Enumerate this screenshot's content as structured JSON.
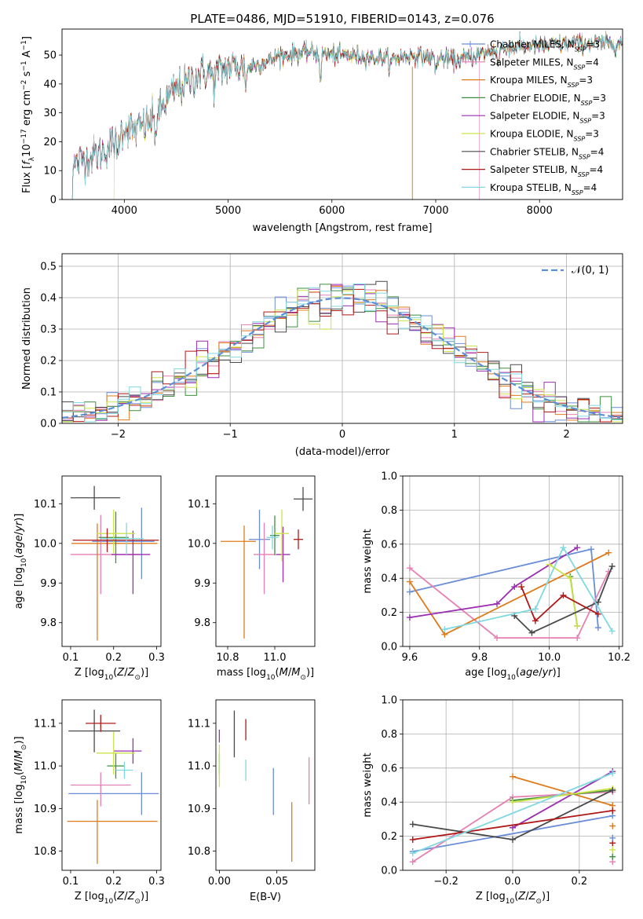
{
  "page_title": "PLATE=0486, MJD=51910, FIBERID=0143, z=0.076",
  "models": [
    {
      "name": "Chabrier MILES",
      "nssp": "3",
      "color": "#6a8ed8"
    },
    {
      "name": "Salpeter MILES",
      "nssp": "4",
      "color": "#e67fb4"
    },
    {
      "name": "Kroupa MILES",
      "nssp": "3",
      "color": "#e07b1c"
    },
    {
      "name": "Chabrier ELODIE",
      "nssp": "3",
      "color": "#3f8f3f"
    },
    {
      "name": "Salpeter ELODIE",
      "nssp": "3",
      "color": "#9b2db0"
    },
    {
      "name": "Kroupa ELODIE",
      "nssp": "3",
      "color": "#cbe34a"
    },
    {
      "name": "Chabrier STELIB",
      "nssp": "4",
      "color": "#4a4a4a"
    },
    {
      "name": "Salpeter STELIB",
      "nssp": "4",
      "color": "#b01818"
    },
    {
      "name": "Kroupa STELIB",
      "nssp": "4",
      "color": "#7fd9e0"
    }
  ],
  "chart_data": [
    {
      "id": "spectrum",
      "type": "line",
      "title": "PLATE=0486, MJD=51910, FIBERID=0143, z=0.076",
      "xlabel": "wavelength [Angstrom, rest frame]",
      "ylabel": "Flux [f_λ 10^-17 erg cm^-2 s^-1 A^-1]",
      "xlim": [
        3400,
        8800
      ],
      "ylim": [
        0,
        59
      ],
      "xticks": [
        4000,
        5000,
        6000,
        7000,
        8000
      ],
      "yticks": [
        0,
        10,
        20,
        30,
        40,
        50
      ],
      "continuum": [
        [
          3500,
          11
        ],
        [
          3600,
          14
        ],
        [
          3700,
          15
        ],
        [
          3800,
          17
        ],
        [
          3900,
          20
        ],
        [
          4000,
          25
        ],
        [
          4100,
          24
        ],
        [
          4200,
          26
        ],
        [
          4300,
          28
        ],
        [
          4400,
          34
        ],
        [
          4500,
          38
        ],
        [
          4600,
          40
        ],
        [
          4700,
          43
        ],
        [
          4800,
          44
        ],
        [
          4900,
          44
        ],
        [
          5000,
          46
        ],
        [
          5100,
          46
        ],
        [
          5200,
          46
        ],
        [
          5300,
          47
        ],
        [
          5400,
          48
        ],
        [
          5500,
          50
        ],
        [
          5600,
          50
        ],
        [
          5700,
          51
        ],
        [
          5800,
          51
        ],
        [
          6000,
          50
        ],
        [
          6200,
          50
        ],
        [
          6400,
          49
        ],
        [
          6600,
          49
        ],
        [
          6800,
          50
        ],
        [
          7000,
          49
        ],
        [
          7200,
          48
        ],
        [
          7400,
          50
        ],
        [
          7600,
          52
        ],
        [
          7800,
          53
        ],
        [
          8000,
          53
        ],
        [
          8200,
          54
        ],
        [
          8400,
          54
        ],
        [
          8600,
          54
        ],
        [
          8800,
          54
        ]
      ],
      "absorption_lines": [
        [
          3933,
          -8
        ],
        [
          4300,
          -5
        ],
        [
          4861,
          -4
        ],
        [
          5175,
          -5
        ],
        [
          5890,
          -8
        ],
        [
          6563,
          -3
        ],
        [
          7000,
          -4
        ],
        [
          7600,
          -5
        ]
      ],
      "model_start_wavelength": [
        3500,
        3500,
        3500,
        3500,
        3500,
        3900,
        3500,
        3500,
        3500
      ],
      "model_end_wavelength": [
        8800,
        7420,
        8800,
        8800,
        8800,
        8800,
        8800,
        8800,
        8800
      ],
      "legend_position": "upper right"
    },
    {
      "id": "residuals",
      "type": "step-histogram",
      "xlabel": "(data-model)/error",
      "ylabel": "Normed distribution",
      "xlim": [
        -2.5,
        2.5
      ],
      "ylim": [
        0,
        0.54
      ],
      "xticks": [
        -2,
        -1,
        0,
        1,
        2
      ],
      "yticks": [
        0.0,
        0.1,
        0.2,
        0.3,
        0.4,
        0.5
      ],
      "bin_width": 0.1,
      "grid": true,
      "reference_curve": "N(0,1)",
      "reference_label": "𝒩(0, 1)",
      "reference_color": "#5b8fd8",
      "legend_position": "upper right"
    },
    {
      "id": "age-vs-Z",
      "type": "errorbar",
      "xlabel": "Z [log10(Z/Z⊙)]",
      "ylabel": "age  [log10(age/yr)]",
      "xlim": [
        0.08,
        0.31
      ],
      "ylim": [
        9.74,
        10.17
      ],
      "xticks": [
        0.1,
        0.2,
        0.3
      ],
      "yticks": [
        9.8,
        9.9,
        10.0,
        10.1
      ],
      "points": [
        {
          "x": 0.265,
          "y": 10.005,
          "xerr": [
            0.115,
            0.03
          ],
          "yerr": [
            0.095,
            0.085
          ]
        },
        {
          "x": 0.17,
          "y": 9.972,
          "xerr": [
            0.07,
            0.09
          ],
          "yerr": [
            0.1,
            0.1
          ]
        },
        {
          "x": 0.162,
          "y": 10.0,
          "xerr": [
            0.06,
            0.14
          ],
          "yerr": [
            0.245,
            0.05
          ]
        },
        {
          "x": 0.205,
          "y": 10.015,
          "xerr": [
            0.04,
            0.03
          ],
          "yerr": [
            0.065,
            0.065
          ]
        },
        {
          "x": 0.245,
          "y": 9.972,
          "xerr": [
            0.05,
            0.04
          ],
          "yerr": [
            0.1,
            0.06
          ]
        },
        {
          "x": 0.2,
          "y": 10.025,
          "xerr": [
            0.04,
            0.05
          ],
          "yerr": [
            0.05,
            0.06
          ]
        },
        {
          "x": 0.155,
          "y": 10.115,
          "xerr": [
            0.055,
            0.06
          ],
          "yerr": [
            0.03,
            0.03
          ]
        },
        {
          "x": 0.185,
          "y": 10.008,
          "xerr": [
            0.08,
            0.12
          ],
          "yerr": [
            0.03,
            0.03
          ]
        },
        {
          "x": 0.23,
          "y": 10.012,
          "xerr": [
            0.06,
            0.04
          ],
          "yerr": [
            0.04,
            0.04
          ]
        }
      ]
    },
    {
      "id": "age-vs-mass",
      "type": "errorbar",
      "xlabel": "mass [log10(M/M⊙)]",
      "ylabel": "",
      "xlim": [
        10.75,
        11.17
      ],
      "ylim": [
        9.74,
        10.17
      ],
      "xticks": [
        10.8,
        11.0
      ],
      "yticks": [
        9.8,
        9.9,
        10.0,
        10.1
      ],
      "points": [
        {
          "x": 10.935,
          "y": 10.01,
          "xerr": [
            0.045,
            0.045
          ],
          "yerr": [
            0.075,
            0.075
          ]
        },
        {
          "x": 10.955,
          "y": 9.972,
          "xerr": [
            0.045,
            0.045
          ],
          "yerr": [
            0.1,
            0.08
          ]
        },
        {
          "x": 10.87,
          "y": 10.005,
          "xerr": [
            0.1,
            0.05
          ],
          "yerr": [
            0.245,
            0.04
          ]
        },
        {
          "x": 11.0,
          "y": 10.02,
          "xerr": [
            0.02,
            0.02
          ],
          "yerr": [
            0.05,
            0.05
          ]
        },
        {
          "x": 11.035,
          "y": 9.972,
          "xerr": [
            0.03,
            0.03
          ],
          "yerr": [
            0.07,
            0.07
          ]
        },
        {
          "x": 11.03,
          "y": 10.025,
          "xerr": [
            0.03,
            0.03
          ],
          "yerr": [
            0.07,
            0.06
          ]
        },
        {
          "x": 11.12,
          "y": 10.112,
          "xerr": [
            0.04,
            0.04
          ],
          "yerr": [
            0.03,
            0.03
          ]
        },
        {
          "x": 11.1,
          "y": 10.01,
          "xerr": [
            0.02,
            0.02
          ],
          "yerr": [
            0.025,
            0.025
          ]
        },
        {
          "x": 10.99,
          "y": 10.015,
          "xerr": [
            0.025,
            0.025
          ],
          "yerr": [
            0.03,
            0.03
          ]
        }
      ]
    },
    {
      "id": "massweight-vs-age",
      "type": "line",
      "xlabel": "age  [log10(age/yr)]",
      "ylabel": "mass weight",
      "xlim": [
        9.58,
        10.21
      ],
      "ylim": [
        0.0,
        1.0
      ],
      "xticks": [
        9.6,
        9.8,
        10.0,
        10.2
      ],
      "yticks": [
        0.0,
        0.2,
        0.4,
        0.6,
        0.8,
        1.0
      ],
      "grid": true,
      "series": [
        {
          "x": [
            9.6,
            10.12,
            10.14
          ],
          "y": [
            0.32,
            0.57,
            0.11
          ]
        },
        {
          "x": [
            9.6,
            9.85,
            10.08,
            10.17
          ],
          "y": [
            0.46,
            0.05,
            0.05,
            0.44
          ]
        },
        {
          "x": [
            9.6,
            9.7,
            10.17
          ],
          "y": [
            0.38,
            0.07,
            0.55
          ]
        },
        {
          "x": [
            10.06,
            10.08
          ],
          "y": [
            0.41,
            0.12
          ]
        },
        {
          "x": [
            9.6,
            9.85,
            9.9,
            10.08
          ],
          "y": [
            0.17,
            0.25,
            0.35,
            0.58
          ]
        },
        {
          "x": [
            10.0,
            10.06,
            10.08
          ],
          "y": [
            0.48,
            0.4,
            0.12
          ]
        },
        {
          "x": [
            9.9,
            9.95,
            10.14,
            10.18
          ],
          "y": [
            0.18,
            0.08,
            0.26,
            0.47
          ]
        },
        {
          "x": [
            9.92,
            9.96,
            10.04,
            10.14
          ],
          "y": [
            0.35,
            0.15,
            0.3,
            0.19
          ]
        },
        {
          "x": [
            9.7,
            9.96,
            10.04,
            10.18
          ],
          "y": [
            0.1,
            0.22,
            0.58,
            0.09
          ]
        }
      ]
    },
    {
      "id": "mass-vs-Z",
      "type": "errorbar",
      "xlabel": "Z [log10(Z/Z⊙)]",
      "ylabel": "mass [log10(M/M⊙)]",
      "xlim": [
        0.08,
        0.31
      ],
      "ylim": [
        10.755,
        11.155
      ],
      "xticks": [
        0.1,
        0.2,
        0.3
      ],
      "yticks": [
        10.8,
        10.9,
        11.0,
        11.1
      ],
      "points": [
        {
          "x": 0.265,
          "y": 10.935,
          "xerr": [
            0.17,
            0.04
          ],
          "yerr": [
            0.05,
            0.05
          ]
        },
        {
          "x": 0.17,
          "y": 10.955,
          "xerr": [
            0.07,
            0.07
          ],
          "yerr": [
            0.05,
            0.03
          ]
        },
        {
          "x": 0.162,
          "y": 10.87,
          "xerr": [
            0.07,
            0.14
          ],
          "yerr": [
            0.1,
            0.05
          ]
        },
        {
          "x": 0.205,
          "y": 11.0,
          "xerr": [
            0.02,
            0.02
          ],
          "yerr": [
            0.03,
            0.03
          ]
        },
        {
          "x": 0.245,
          "y": 11.035,
          "xerr": [
            0.045,
            0.02
          ],
          "yerr": [
            0.03,
            0.03
          ]
        },
        {
          "x": 0.2,
          "y": 11.03,
          "xerr": [
            0.04,
            0.05
          ],
          "yerr": [
            0.05,
            0.05
          ]
        },
        {
          "x": 0.155,
          "y": 11.082,
          "xerr": [
            0.06,
            0.06
          ],
          "yerr": [
            0.05,
            0.05
          ]
        },
        {
          "x": 0.17,
          "y": 11.1,
          "xerr": [
            0.035,
            0.035
          ],
          "yerr": [
            0.02,
            0.02
          ]
        },
        {
          "x": 0.225,
          "y": 10.99,
          "xerr": [
            0.02,
            0.02
          ],
          "yerr": [
            0.02,
            0.02
          ]
        }
      ]
    },
    {
      "id": "mass-vs-EBV",
      "type": "errorbar",
      "xlabel": "E(B-V)",
      "ylabel": "",
      "xlim": [
        -0.003,
        0.083
      ],
      "ylim": [
        10.755,
        11.155
      ],
      "xticks": [
        0.0,
        0.05
      ],
      "yticks": [
        10.8,
        10.9,
        11.0,
        11.1
      ],
      "points": [
        {
          "x": 0.047,
          "y": 10.94,
          "xerr": [
            0,
            0
          ],
          "yerr": [
            0.055,
            0.055
          ]
        },
        {
          "x": 0.078,
          "y": 10.965,
          "xerr": [
            0,
            0
          ],
          "yerr": [
            0.055,
            0.055
          ]
        },
        {
          "x": 0.063,
          "y": 10.845,
          "xerr": [
            0,
            0
          ],
          "yerr": [
            0.07,
            0.07
          ]
        },
        {
          "x": 0.0,
          "y": 11.005,
          "xerr": [
            0,
            0
          ],
          "yerr": [
            0.025,
            0.025
          ]
        },
        {
          "x": 0.0,
          "y": 11.07,
          "xerr": [
            0,
            0
          ],
          "yerr": [
            0.015,
            0.015
          ]
        },
        {
          "x": 0.0,
          "y": 11.0,
          "xerr": [
            0,
            0
          ],
          "yerr": [
            0.05,
            0.05
          ]
        },
        {
          "x": 0.013,
          "y": 11.075,
          "xerr": [
            0,
            0
          ],
          "yerr": [
            0.055,
            0.055
          ]
        },
        {
          "x": 0.023,
          "y": 11.085,
          "xerr": [
            0,
            0
          ],
          "yerr": [
            0.025,
            0.025
          ]
        },
        {
          "x": 0.023,
          "y": 10.99,
          "xerr": [
            0,
            0
          ],
          "yerr": [
            0.025,
            0.025
          ]
        }
      ]
    },
    {
      "id": "massweight-vs-Z",
      "type": "line",
      "xlabel": "Z [log10(Z/Z⊙)]",
      "ylabel": "mass weight",
      "xlim": [
        -0.33,
        0.33
      ],
      "ylim": [
        0.0,
        1.0
      ],
      "xticks": [
        -0.2,
        0.0,
        0.2
      ],
      "yticks": [
        0.0,
        0.2,
        0.4,
        0.6,
        0.8,
        1.0
      ],
      "grid": true,
      "series": [
        {
          "x": [
            -0.3,
            0.3
          ],
          "y": [
            0.11,
            0.32
          ]
        },
        {
          "x": [
            -0.3,
            0.0,
            0.3
          ],
          "y": [
            0.05,
            0.43,
            0.46
          ]
        },
        {
          "x": [
            0.0,
            0.3
          ],
          "y": [
            0.55,
            0.38
          ]
        },
        {
          "x": [
            0.0,
            0.3
          ],
          "y": [
            0.41,
            0.47
          ]
        },
        {
          "x": [
            0.0,
            0.3
          ],
          "y": [
            0.25,
            0.58
          ]
        },
        {
          "x": [
            0.0,
            0.3
          ],
          "y": [
            0.4,
            0.48
          ]
        },
        {
          "x": [
            -0.3,
            0.0,
            0.3
          ],
          "y": [
            0.27,
            0.18,
            0.47
          ]
        },
        {
          "x": [
            -0.3,
            0.3
          ],
          "y": [
            0.18,
            0.35
          ]
        },
        {
          "x": [
            -0.3,
            0.3
          ],
          "y": [
            0.1,
            0.57
          ]
        }
      ],
      "extra_markers_x": 0.3,
      "extra_markers_y": [
        0.05,
        0.08,
        0.12,
        0.16,
        0.19,
        0.26
      ]
    }
  ]
}
